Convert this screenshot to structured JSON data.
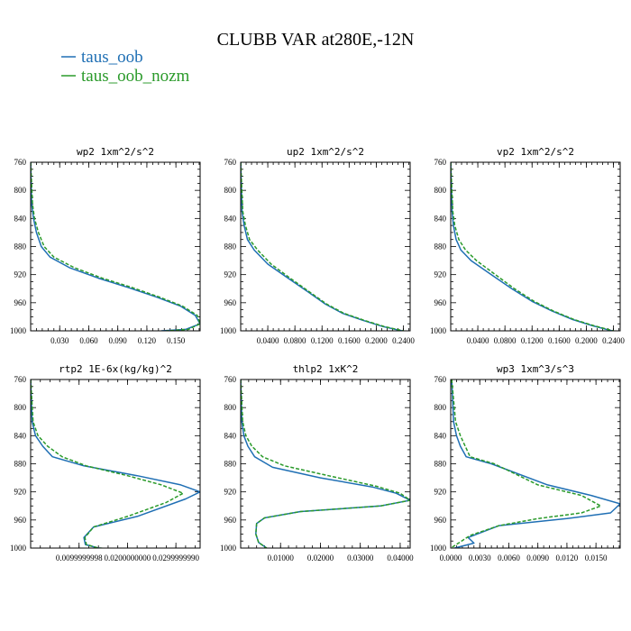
{
  "figure": {
    "title": "CLUBB VAR at280E,-12N",
    "legend": [
      {
        "label": "taus_oob",
        "color": "#1f6fb4"
      },
      {
        "label": "taus_oob_nozm",
        "color": "#2a9a2a"
      }
    ]
  },
  "chart_data": [
    {
      "type": "line",
      "title": "wp2  1xm^2/s^2",
      "ylim": [
        760,
        1000
      ],
      "yticks": [
        "760",
        "800",
        "840",
        "880",
        "920",
        "960",
        "1000"
      ],
      "xlim": [
        0,
        0.175
      ],
      "xticks": [
        0.03,
        0.06,
        0.09,
        0.12,
        0.15
      ],
      "xticklabels": [
        "0.030",
        "0.060",
        "0.090",
        "0.120",
        "0.150"
      ],
      "series": [
        {
          "name": "taus_oob",
          "x": [
            0,
            0.001,
            0.003,
            0.006,
            0.011,
            0.02,
            0.04,
            0.07,
            0.1,
            0.13,
            0.155,
            0.17,
            0.175,
            0.16,
            0.135
          ],
          "y": [
            760,
            820,
            840,
            860,
            880,
            895,
            910,
            925,
            938,
            952,
            965,
            978,
            990,
            998,
            1000
          ]
        },
        {
          "name": "taus_oob_nozm",
          "x": [
            0,
            0.002,
            0.004,
            0.008,
            0.014,
            0.024,
            0.045,
            0.074,
            0.104,
            0.133,
            0.157,
            0.172,
            0.175,
            0.163,
            0.14
          ],
          "y": [
            760,
            820,
            840,
            860,
            880,
            895,
            910,
            925,
            938,
            952,
            965,
            978,
            990,
            998,
            1000
          ]
        }
      ]
    },
    {
      "type": "line",
      "title": "up2  1xm^2/s^2",
      "ylim": [
        760,
        1000
      ],
      "yticks": [
        "760",
        "800",
        "840",
        "880",
        "920",
        "960",
        "1000"
      ],
      "xlim": [
        0,
        0.25
      ],
      "xticks": [
        0.04,
        0.08,
        0.12,
        0.16,
        0.2,
        0.24
      ],
      "xticklabels": [
        "0.0400",
        "0.0800",
        "0.1200",
        "0.1600",
        "0.2000",
        "0.2400"
      ],
      "series": [
        {
          "name": "taus_oob",
          "x": [
            0,
            0.002,
            0.005,
            0.01,
            0.02,
            0.04,
            0.07,
            0.1,
            0.125,
            0.15,
            0.18,
            0.21,
            0.238
          ],
          "y": [
            760,
            830,
            850,
            870,
            885,
            905,
            925,
            945,
            962,
            975,
            985,
            994,
            1000
          ]
        },
        {
          "name": "taus_oob_nozm",
          "x": [
            0,
            0.003,
            0.007,
            0.013,
            0.025,
            0.045,
            0.073,
            0.102,
            0.127,
            0.152,
            0.182,
            0.212,
            0.24
          ],
          "y": [
            760,
            830,
            850,
            870,
            885,
            905,
            925,
            945,
            962,
            975,
            985,
            994,
            1000
          ]
        }
      ]
    },
    {
      "type": "line",
      "title": "vp2  1xm^2/s^2",
      "ylim": [
        760,
        1000
      ],
      "yticks": [
        "760",
        "800",
        "840",
        "880",
        "920",
        "960",
        "1000"
      ],
      "xlim": [
        0,
        0.25
      ],
      "xticks": [
        0.04,
        0.08,
        0.12,
        0.16,
        0.2,
        0.24
      ],
      "xticklabels": [
        "0.0400",
        "0.0800",
        "0.1200",
        "0.1600",
        "0.2000",
        "0.2400"
      ],
      "series": [
        {
          "name": "taus_oob",
          "x": [
            0,
            0.002,
            0.004,
            0.008,
            0.015,
            0.03,
            0.06,
            0.09,
            0.12,
            0.15,
            0.18,
            0.21,
            0.238
          ],
          "y": [
            760,
            830,
            850,
            870,
            885,
            900,
            920,
            940,
            958,
            972,
            984,
            993,
            1000
          ]
        },
        {
          "name": "taus_oob_nozm",
          "x": [
            0,
            0.003,
            0.006,
            0.012,
            0.022,
            0.038,
            0.066,
            0.094,
            0.123,
            0.152,
            0.182,
            0.212,
            0.24
          ],
          "y": [
            760,
            830,
            850,
            870,
            885,
            900,
            920,
            940,
            958,
            972,
            984,
            993,
            1000
          ]
        }
      ]
    },
    {
      "type": "line",
      "title": "rtp2  1E-6x(kg/kg)^2",
      "ylim": [
        760,
        1000
      ],
      "yticks": [
        "760",
        "800",
        "840",
        "880",
        "920",
        "960",
        "1000"
      ],
      "xlim": [
        0,
        0.035
      ],
      "xticks": [
        0.01,
        0.02,
        0.03
      ],
      "xticklabels": [
        "0.0099999998",
        "0.0200000000",
        "0.0299999990"
      ],
      "series": [
        {
          "name": "taus_oob",
          "x": [
            0,
            0.0003,
            0.001,
            0.0025,
            0.0045,
            0.011,
            0.022,
            0.031,
            0.035,
            0.032,
            0.022,
            0.013,
            0.011,
            0.0113,
            0.014,
            0.019
          ],
          "y": [
            760,
            820,
            840,
            855,
            870,
            883,
            897,
            910,
            920,
            930,
            955,
            970,
            985,
            995,
            1000,
            1002
          ]
        },
        {
          "name": "taus_oob_nozm",
          "x": [
            0,
            0.0005,
            0.0015,
            0.0035,
            0.0065,
            0.0115,
            0.02,
            0.027,
            0.0315,
            0.028,
            0.02,
            0.013,
            0.0112,
            0.0115,
            0.014,
            0.019
          ],
          "y": [
            760,
            820,
            840,
            855,
            870,
            883,
            897,
            910,
            922,
            935,
            955,
            970,
            985,
            995,
            1000,
            1002
          ]
        }
      ]
    },
    {
      "type": "line",
      "title": "thlp2  1xK^2",
      "ylim": [
        760,
        1000
      ],
      "yticks": [
        "760",
        "800",
        "840",
        "880",
        "920",
        "960",
        "1000"
      ],
      "xlim": [
        0,
        0.0425
      ],
      "xticks": [
        0.01,
        0.02,
        0.03,
        0.04
      ],
      "xticklabels": [
        "0.01000",
        "0.02000",
        "0.03000",
        "0.04000"
      ],
      "series": [
        {
          "name": "taus_oob",
          "x": [
            0,
            0.0003,
            0.0008,
            0.0018,
            0.0035,
            0.008,
            0.02,
            0.033,
            0.039,
            0.0425,
            0.035,
            0.015,
            0.006,
            0.004,
            0.0038,
            0.0045,
            0.0065
          ],
          "y": [
            760,
            820,
            840,
            855,
            870,
            885,
            900,
            913,
            922,
            932,
            940,
            948,
            957,
            965,
            980,
            992,
            1000
          ]
        },
        {
          "name": "taus_oob_nozm",
          "x": [
            0,
            0.0005,
            0.0013,
            0.0028,
            0.0055,
            0.011,
            0.022,
            0.034,
            0.04,
            0.0425,
            0.035,
            0.015,
            0.006,
            0.004,
            0.0038,
            0.0045,
            0.0065
          ],
          "y": [
            760,
            820,
            840,
            855,
            870,
            883,
            897,
            912,
            922,
            932,
            940,
            948,
            957,
            965,
            980,
            992,
            1000
          ]
        }
      ]
    },
    {
      "type": "line",
      "title": "wp3  1xm^3/s^3",
      "ylim": [
        760,
        1000
      ],
      "yticks": [
        "760",
        "800",
        "840",
        "880",
        "920",
        "960",
        "1000"
      ],
      "xlim": [
        0,
        0.0175
      ],
      "xticks": [
        0,
        0.003,
        0.006,
        0.009,
        0.012,
        0.015
      ],
      "xticklabels": [
        "0.0000",
        "0.0030",
        "0.0060",
        "0.0090",
        "0.0120",
        "0.0150"
      ],
      "series": [
        {
          "name": "taus_oob",
          "x": [
            0.0001,
            0.0003,
            0.0006,
            0.001,
            0.0016,
            0.0042,
            0.01,
            0.0145,
            0.0175,
            0.0165,
            0.012,
            0.005,
            0.0018,
            0.0024,
            0.0004
          ],
          "y": [
            760,
            820,
            840,
            855,
            870,
            880,
            910,
            925,
            937,
            950,
            958,
            968,
            985,
            993,
            1000
          ]
        },
        {
          "name": "taus_oob_nozm",
          "x": [
            0.0001,
            0.0005,
            0.001,
            0.0015,
            0.002,
            0.0045,
            0.009,
            0.0135,
            0.0155,
            0.0135,
            0.009,
            0.005,
            0.002,
            0.0008,
            0
          ],
          "y": [
            760,
            820,
            840,
            855,
            870,
            880,
            910,
            925,
            940,
            950,
            958,
            968,
            982,
            993,
            1000
          ]
        }
      ]
    }
  ]
}
